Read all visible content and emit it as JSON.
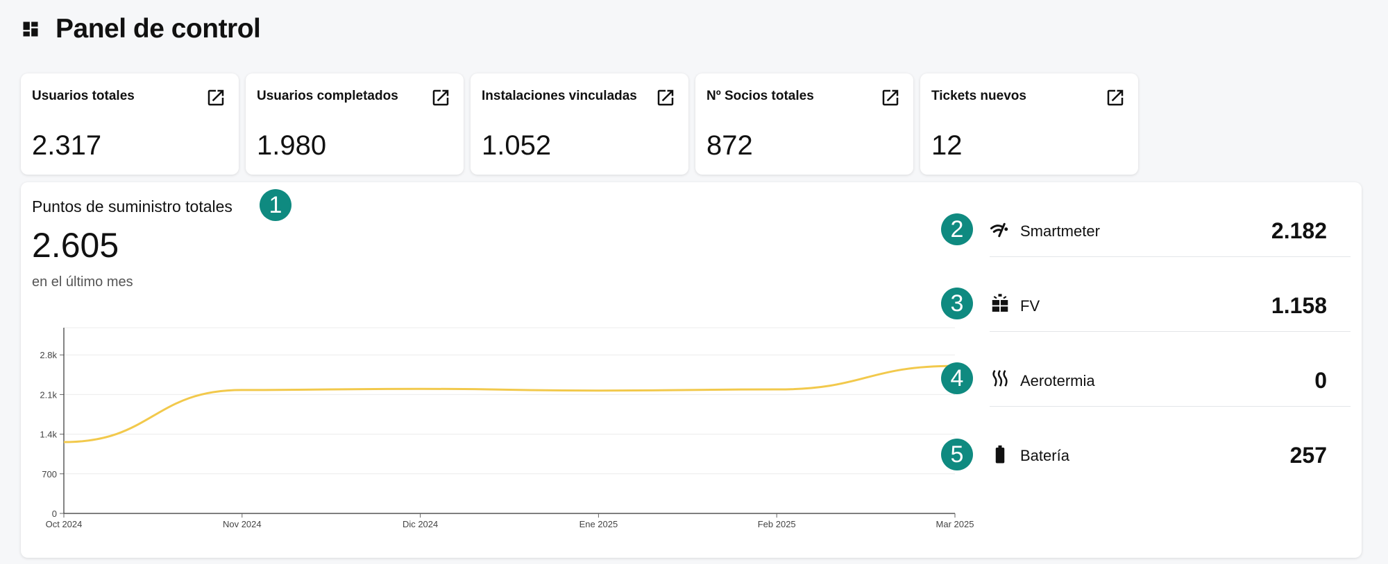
{
  "header": {
    "title": "Panel de control",
    "icon": "dashboard-icon"
  },
  "kpis": [
    {
      "title": "Usuarios totales",
      "value": "2.317",
      "icon": "open-in-new-icon"
    },
    {
      "title": "Usuarios completados",
      "value": "1.980",
      "icon": "open-in-new-icon"
    },
    {
      "title": "Instalaciones vinculadas",
      "value": "1.052",
      "icon": "open-in-new-icon"
    },
    {
      "title": "Nº Socios totales",
      "value": "872",
      "icon": "open-in-new-icon"
    },
    {
      "title": "Tickets nuevos",
      "value": "12",
      "icon": "open-in-new-icon"
    }
  ],
  "supply": {
    "title": "Puntos de suministro totales",
    "value": "2.605",
    "subtitle": "en el último mes",
    "badge": "1"
  },
  "breakdown": [
    {
      "label": "Smartmeter",
      "value": "2.182",
      "badge": "2",
      "icon": "smartmeter-icon"
    },
    {
      "label": "FV",
      "value": "1.158",
      "badge": "3",
      "icon": "solar-panel-icon"
    },
    {
      "label": "Aerotermia",
      "value": "0",
      "badge": "4",
      "icon": "heat-waves-icon"
    },
    {
      "label": "Batería",
      "value": "257",
      "badge": "5",
      "icon": "battery-icon"
    }
  ],
  "colors": {
    "accent": "#0f8a80",
    "line": "#f2c94c",
    "text": "#111111"
  },
  "chart_data": {
    "type": "line",
    "x": [
      "Oct 2024",
      "Nov 2024",
      "Dic 2024",
      "Ene 2025",
      "Feb 2025",
      "Mar 2025"
    ],
    "series": [
      {
        "values": [
          1260,
          2180,
          2200,
          2170,
          2190,
          2605
        ]
      }
    ],
    "y_ticks": [
      0,
      700,
      1400,
      2100,
      2800
    ],
    "y_tick_labels": [
      "0",
      "700",
      "1.4k",
      "2.1k",
      "2.8k"
    ],
    "ylim": [
      0,
      3280
    ],
    "grid": true,
    "legend": "none"
  }
}
